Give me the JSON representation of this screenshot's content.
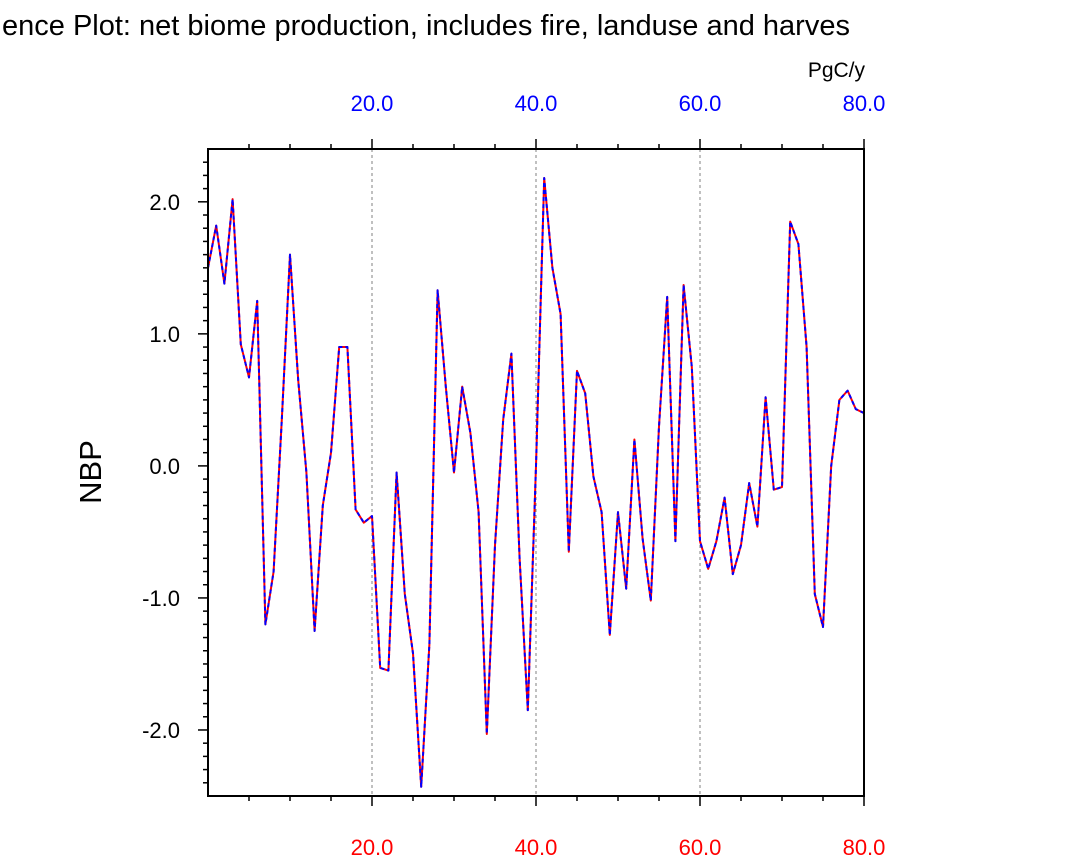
{
  "chart_data": {
    "type": "line",
    "title": "ence Plot: net biome production, includes fire, landuse and harves",
    "ylabel": "NBP",
    "units": "PgC/y",
    "xlim": [
      0,
      80
    ],
    "ylim": [
      -2.5,
      2.4
    ],
    "x_ticks": [
      20,
      40,
      60,
      80
    ],
    "x_tick_labels": [
      "20.0",
      "40.0",
      "60.0",
      "80.0"
    ],
    "y_ticks": [
      -2,
      -1,
      0,
      1,
      2
    ],
    "y_tick_labels": [
      "-2.0",
      "-1.0",
      "0.0",
      "1.0",
      "2.0"
    ],
    "grid": "vertical dashed at major x ticks",
    "colors": {
      "top_axis_labels": "#0000ff",
      "bottom_axis_labels": "#ff0000",
      "series_dashed": "#0000ff",
      "series_solid": "#ff0000",
      "grid": "#808080",
      "frame": "#000000"
    },
    "x": [
      0,
      1,
      2,
      3,
      4,
      5,
      6,
      7,
      8,
      9,
      10,
      11,
      12,
      13,
      14,
      15,
      16,
      17,
      18,
      19,
      20,
      21,
      22,
      23,
      24,
      25,
      26,
      27,
      28,
      29,
      30,
      31,
      32,
      33,
      34,
      35,
      36,
      37,
      38,
      39,
      40,
      41,
      42,
      43,
      44,
      45,
      46,
      47,
      48,
      49,
      50,
      51,
      52,
      53,
      54,
      55,
      56,
      57,
      58,
      59,
      60,
      61,
      62,
      63,
      64,
      65,
      66,
      67,
      68,
      69,
      70,
      71,
      72,
      73,
      74,
      75,
      76,
      77,
      78,
      79,
      80
    ],
    "series": [
      {
        "style": "solid red under dashed blue",
        "values": [
          1.5,
          1.82,
          1.38,
          2.02,
          0.92,
          0.67,
          1.25,
          -1.2,
          -0.8,
          0.35,
          1.6,
          0.65,
          -0.05,
          -1.25,
          -0.3,
          0.1,
          0.9,
          0.9,
          -0.33,
          -0.43,
          -0.38,
          -1.53,
          -1.55,
          -0.05,
          -0.97,
          -1.42,
          -2.43,
          -1.35,
          1.33,
          0.6,
          -0.05,
          0.6,
          0.25,
          -0.35,
          -2.03,
          -0.6,
          0.35,
          0.85,
          -0.7,
          -1.85,
          0.0,
          2.18,
          1.5,
          1.15,
          -0.65,
          0.72,
          0.55,
          -0.08,
          -0.35,
          -1.28,
          -0.35,
          -0.93,
          0.2,
          -0.55,
          -1.02,
          0.3,
          1.28,
          -0.57,
          1.37,
          0.75,
          -0.57,
          -0.78,
          -0.57,
          -0.24,
          -0.82,
          -0.6,
          -0.13,
          -0.46,
          0.52,
          -0.18,
          -0.16,
          1.85,
          1.68,
          0.9,
          -0.97,
          -1.22,
          0.0,
          0.5,
          0.57,
          0.43,
          0.4
        ]
      }
    ]
  }
}
